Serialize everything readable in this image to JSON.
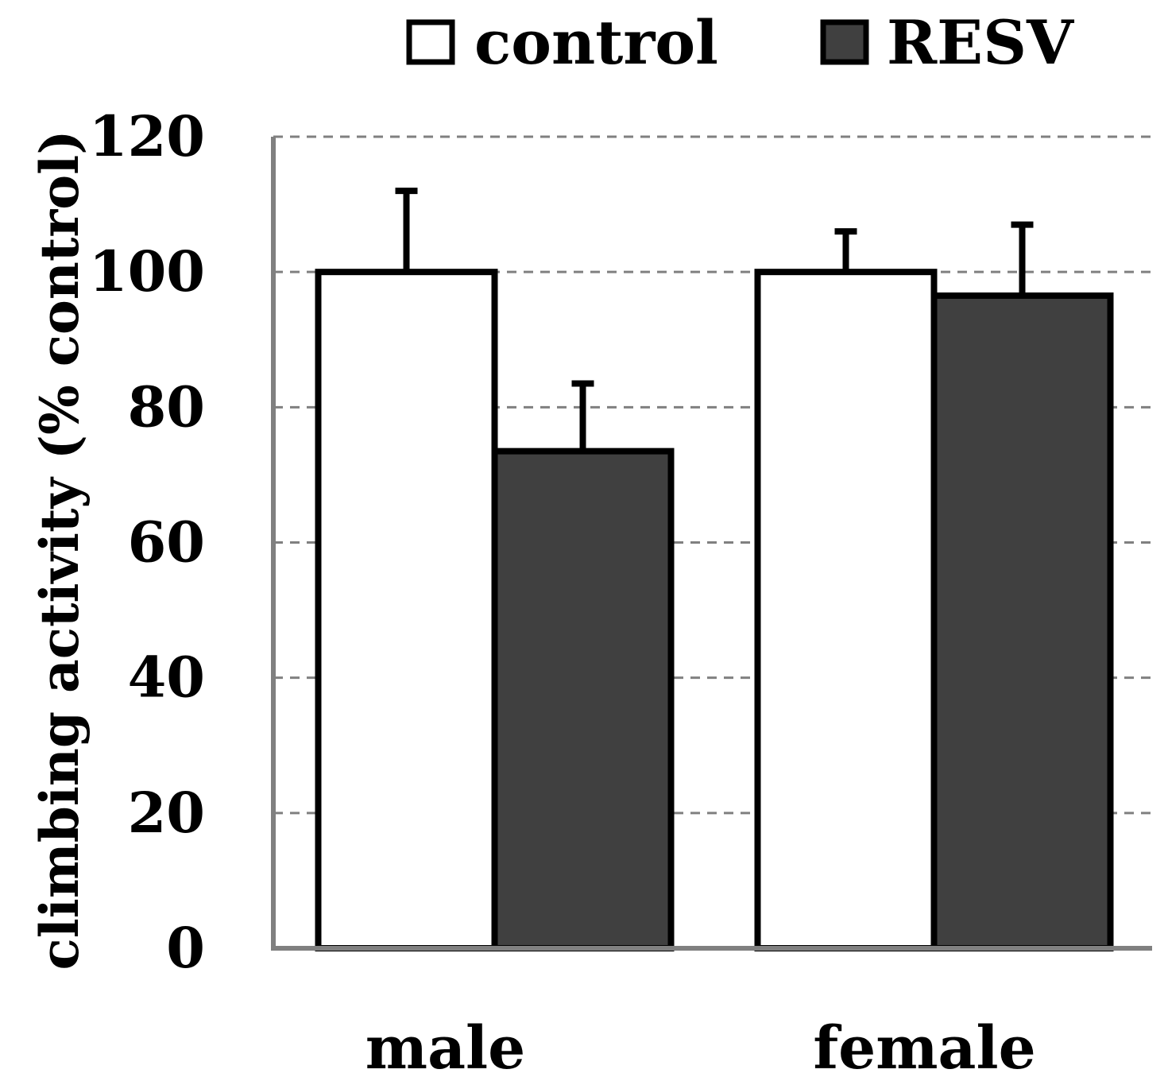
{
  "chart_data": {
    "type": "bar",
    "title": "",
    "xlabel": "",
    "ylabel": "climbing activity (% control)",
    "ylim": [
      0,
      120
    ],
    "yticks": [
      0,
      20,
      40,
      60,
      80,
      100,
      120
    ],
    "grid": true,
    "legend_position": "top",
    "categories": [
      "male",
      "female"
    ],
    "series": [
      {
        "name": "control",
        "color": "#ffffff",
        "values": [
          100,
          100
        ],
        "errors": [
          12,
          6
        ]
      },
      {
        "name": "RESV",
        "color": "#404040",
        "values": [
          73.5,
          96.5
        ],
        "errors": [
          10,
          10.5
        ]
      }
    ]
  },
  "colors": {
    "axis": "#808080",
    "grid": "#808080",
    "bar_outline": "#000000"
  }
}
